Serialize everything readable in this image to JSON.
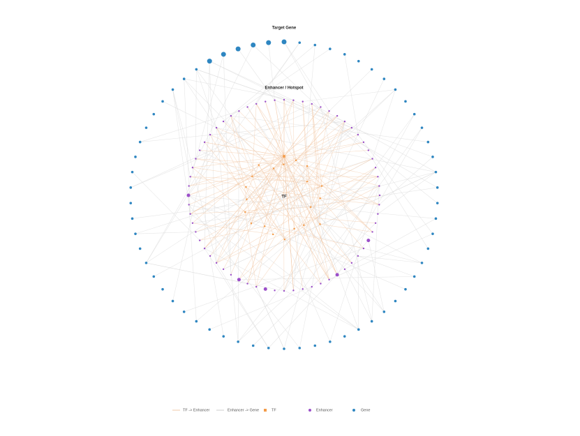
{
  "labels": {
    "target_gene": "Target Gene",
    "enhancer": "Enhancer / Hotspot",
    "tf": "TF"
  },
  "legend": {
    "items": [
      {
        "label": "TF -> Enhancer"
      },
      {
        "label": "Enhancer -> Gene"
      },
      {
        "label": "TF"
      },
      {
        "label": "Enhancer"
      },
      {
        "label": "Gene"
      }
    ]
  }
}
